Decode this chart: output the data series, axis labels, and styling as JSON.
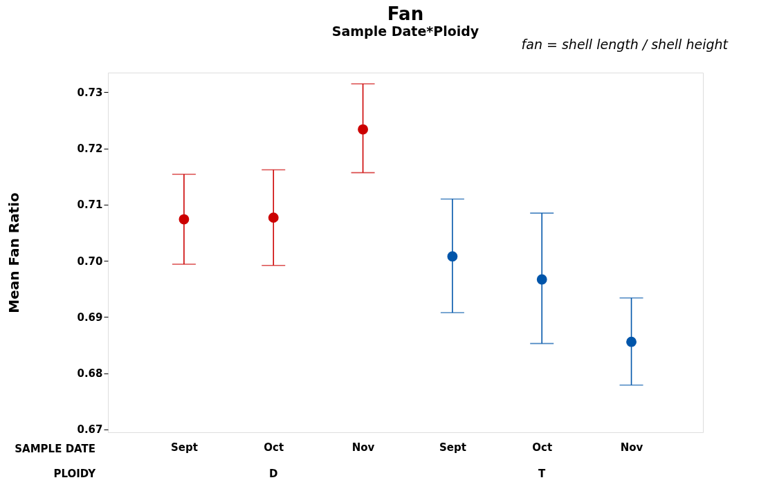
{
  "chart_data": {
    "type": "scatter",
    "title": "Fan",
    "subtitle": "Sample Date*Ploidy",
    "ylabel": "Mean Fan Ratio",
    "categories": [
      "Sept",
      "Oct",
      "Nov",
      "Sept",
      "Oct",
      "Nov"
    ],
    "series": [
      {
        "color": "#cc0000",
        "values": [
          0.7074,
          0.7077,
          0.7234,
          null,
          null,
          null
        ],
        "errors": [
          [
            0.6994,
            0.7154
          ],
          [
            0.6992,
            0.7162
          ],
          [
            0.7157,
            0.7315
          ],
          null,
          null,
          null
        ]
      },
      {
        "color": "#0055aa",
        "values": [
          null,
          null,
          null,
          0.7008,
          0.6967,
          0.6856
        ],
        "errors": [
          null,
          null,
          null,
          [
            0.6908,
            0.711
          ],
          [
            0.6853,
            0.7085
          ],
          [
            0.6779,
            0.6934
          ]
        ]
      }
    ],
    "ylim": [
      0.6695,
      0.7335
    ],
    "yticks": [
      0.67,
      0.68,
      0.69,
      {
        "value": 0.7,
        "label": "0.70"
      },
      0.71,
      0.72,
      0.73
    ],
    "annotations": [
      "fan = shell length / shell height",
      "SAMPLE DATE",
      "PLOIDY",
      "D",
      "T"
    ],
    "marker": "circle",
    "grid": false,
    "legend": false
  }
}
